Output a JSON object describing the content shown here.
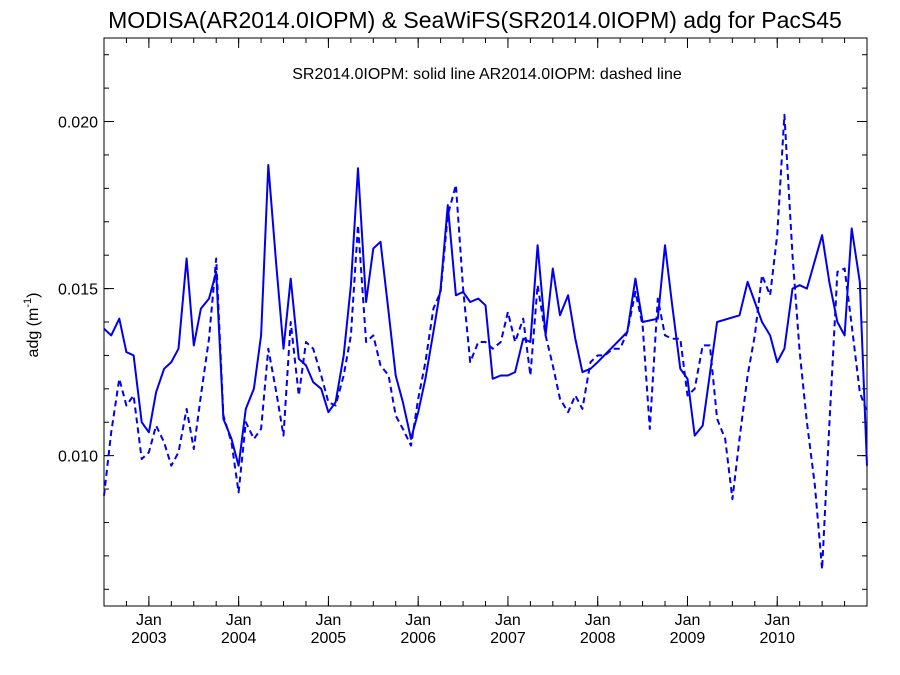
{
  "chart_data": {
    "type": "line",
    "title": "MODISA(AR2014.0IOPM) & SeaWiFS(SR2014.0IOPM)  adg for PacS45",
    "legend_text": "SR2014.0IOPM: solid line   AR2014.0IOPM: dashed line",
    "ylabel_main": "adg (m",
    "ylabel_sup": "-1",
    "ylabel_close": ")",
    "xlim": [
      2002.5,
      2011.0
    ],
    "ylim": [
      0.0055,
      0.0225
    ],
    "y_ticks": [
      {
        "value": 0.01,
        "label": "0.010"
      },
      {
        "value": 0.015,
        "label": "0.015"
      },
      {
        "value": 0.02,
        "label": "0.020"
      }
    ],
    "y_minor_step": 0.001,
    "x_ticks": [
      {
        "value": 2003.0,
        "month": "Jan",
        "year": "2003"
      },
      {
        "value": 2004.0,
        "month": "Jan",
        "year": "2004"
      },
      {
        "value": 2005.0,
        "month": "Jan",
        "year": "2005"
      },
      {
        "value": 2006.0,
        "month": "Jan",
        "year": "2006"
      },
      {
        "value": 2007.0,
        "month": "Jan",
        "year": "2007"
      },
      {
        "value": 2008.0,
        "month": "Jan",
        "year": "2008"
      },
      {
        "value": 2009.0,
        "month": "Jan",
        "year": "2009"
      },
      {
        "value": 2010.0,
        "month": "Jan",
        "year": "2010"
      }
    ],
    "x_minor_step": 0.25,
    "colors": {
      "series": "#0000ee",
      "axis": "#000000"
    },
    "series": [
      {
        "style": "solid",
        "x": [
          2002.5,
          2002.58,
          2002.67,
          2002.75,
          2002.83,
          2002.92,
          2003.0,
          2003.08,
          2003.17,
          2003.25,
          2003.33,
          2003.42,
          2003.5,
          2003.58,
          2003.67,
          2003.75,
          2003.83,
          2003.92,
          2004.0,
          2004.08,
          2004.17,
          2004.25,
          2004.33,
          2004.42,
          2004.5,
          2004.58,
          2004.67,
          2004.75,
          2004.83,
          2004.92,
          2005.0,
          2005.08,
          2005.17,
          2005.25,
          2005.33,
          2005.42,
          2005.5,
          2005.58,
          2005.67,
          2005.75,
          2005.83,
          2005.92,
          2006.0,
          2006.08,
          2006.17,
          2006.25,
          2006.33,
          2006.42,
          2006.5,
          2006.58,
          2006.67,
          2006.75,
          2006.83,
          2006.92,
          2007.0,
          2007.08,
          2007.17,
          2007.25,
          2007.33,
          2007.42,
          2007.5,
          2007.58,
          2007.67,
          2007.75,
          2007.83,
          2007.92,
          2008.0,
          2008.33,
          2008.42,
          2008.5,
          2008.67,
          2008.75,
          2008.83,
          2008.92,
          2009.0,
          2009.08,
          2009.17,
          2009.33,
          2009.58,
          2009.67,
          2009.83,
          2009.92,
          2010.0,
          2010.08,
          2010.17,
          2010.25,
          2010.33,
          2010.5,
          2010.58,
          2010.67,
          2010.75,
          2010.83,
          2010.92,
          2011.0
        ],
        "y": [
          0.0138,
          0.0136,
          0.0141,
          0.0131,
          0.013,
          0.011,
          0.0107,
          0.0119,
          0.0126,
          0.0128,
          0.0132,
          0.0159,
          0.0133,
          0.0144,
          0.0147,
          0.0155,
          0.0111,
          0.0105,
          0.0097,
          0.0114,
          0.012,
          0.0136,
          0.0187,
          0.0157,
          0.0132,
          0.0153,
          0.0129,
          0.0127,
          0.0122,
          0.012,
          0.0113,
          0.0116,
          0.013,
          0.0151,
          0.0186,
          0.0146,
          0.0162,
          0.0164,
          0.0143,
          0.0124,
          0.0116,
          0.0105,
          0.0113,
          0.0123,
          0.0137,
          0.015,
          0.0175,
          0.0148,
          0.0149,
          0.0146,
          0.0147,
          0.0145,
          0.0123,
          0.0124,
          0.0124,
          0.0125,
          0.0135,
          0.0134,
          0.0163,
          0.0136,
          0.0156,
          0.0142,
          0.0148,
          0.0135,
          0.0125,
          0.0126,
          0.0128,
          0.0137,
          0.0153,
          0.014,
          0.0141,
          0.0163,
          0.0145,
          0.0126,
          0.0123,
          0.0106,
          0.0109,
          0.014,
          0.0142,
          0.0152,
          0.014,
          0.0136,
          0.0128,
          0.0132,
          0.015,
          0.0151,
          0.015,
          0.0166,
          0.0152,
          0.014,
          0.0136,
          0.0168,
          0.0152,
          0.0097
        ]
      },
      {
        "style": "dashed",
        "x": [
          2002.5,
          2002.58,
          2002.67,
          2002.75,
          2002.83,
          2002.92,
          2003.0,
          2003.08,
          2003.17,
          2003.25,
          2003.33,
          2003.42,
          2003.5,
          2003.58,
          2003.67,
          2003.75,
          2003.83,
          2003.92,
          2004.0,
          2004.08,
          2004.17,
          2004.25,
          2004.33,
          2004.42,
          2004.5,
          2004.58,
          2004.67,
          2004.75,
          2004.83,
          2004.92,
          2005.0,
          2005.08,
          2005.17,
          2005.25,
          2005.33,
          2005.42,
          2005.5,
          2005.58,
          2005.67,
          2005.75,
          2005.83,
          2005.92,
          2006.0,
          2006.08,
          2006.17,
          2006.25,
          2006.33,
          2006.42,
          2006.5,
          2006.58,
          2006.67,
          2006.75,
          2006.83,
          2006.92,
          2007.0,
          2007.08,
          2007.17,
          2007.25,
          2007.33,
          2007.42,
          2007.5,
          2007.58,
          2007.67,
          2007.75,
          2007.83,
          2007.92,
          2008.0,
          2008.08,
          2008.17,
          2008.25,
          2008.33,
          2008.42,
          2008.5,
          2008.58,
          2008.67,
          2008.75,
          2008.83,
          2008.92,
          2009.0,
          2009.08,
          2009.17,
          2009.25,
          2009.33,
          2009.42,
          2009.5,
          2009.58,
          2009.67,
          2009.75,
          2009.83,
          2009.92,
          2010.0,
          2010.08,
          2010.17,
          2010.25,
          2010.33,
          2010.42,
          2010.5,
          2010.58,
          2010.67,
          2010.75,
          2010.83,
          2010.92,
          2011.0
        ],
        "y": [
          0.0088,
          0.0107,
          0.0123,
          0.0115,
          0.0118,
          0.0099,
          0.0101,
          0.0109,
          0.0104,
          0.0097,
          0.0101,
          0.0114,
          0.0102,
          0.0118,
          0.0135,
          0.0159,
          0.0112,
          0.0104,
          0.0089,
          0.011,
          0.0105,
          0.0108,
          0.0132,
          0.0119,
          0.0106,
          0.014,
          0.0118,
          0.0134,
          0.0132,
          0.0124,
          0.0116,
          0.0115,
          0.0124,
          0.0136,
          0.0169,
          0.0134,
          0.0136,
          0.0127,
          0.0124,
          0.0112,
          0.0108,
          0.0103,
          0.0117,
          0.0128,
          0.0144,
          0.0149,
          0.0172,
          0.0181,
          0.015,
          0.0128,
          0.0134,
          0.0134,
          0.0132,
          0.0134,
          0.0143,
          0.0134,
          0.0141,
          0.0124,
          0.0151,
          0.0136,
          0.0127,
          0.0117,
          0.0113,
          0.0118,
          0.0114,
          0.0128,
          0.013,
          0.013,
          0.0132,
          0.0132,
          0.0137,
          0.0149,
          0.0139,
          0.0108,
          0.0147,
          0.0136,
          0.0135,
          0.0135,
          0.0118,
          0.012,
          0.0133,
          0.0133,
          0.0111,
          0.0105,
          0.0087,
          0.0105,
          0.0124,
          0.0136,
          0.0154,
          0.0148,
          0.0166,
          0.0202,
          0.016,
          0.0131,
          0.011,
          0.0091,
          0.0066,
          0.0109,
          0.0155,
          0.0156,
          0.0139,
          0.0119,
          0.0113
        ]
      }
    ]
  }
}
